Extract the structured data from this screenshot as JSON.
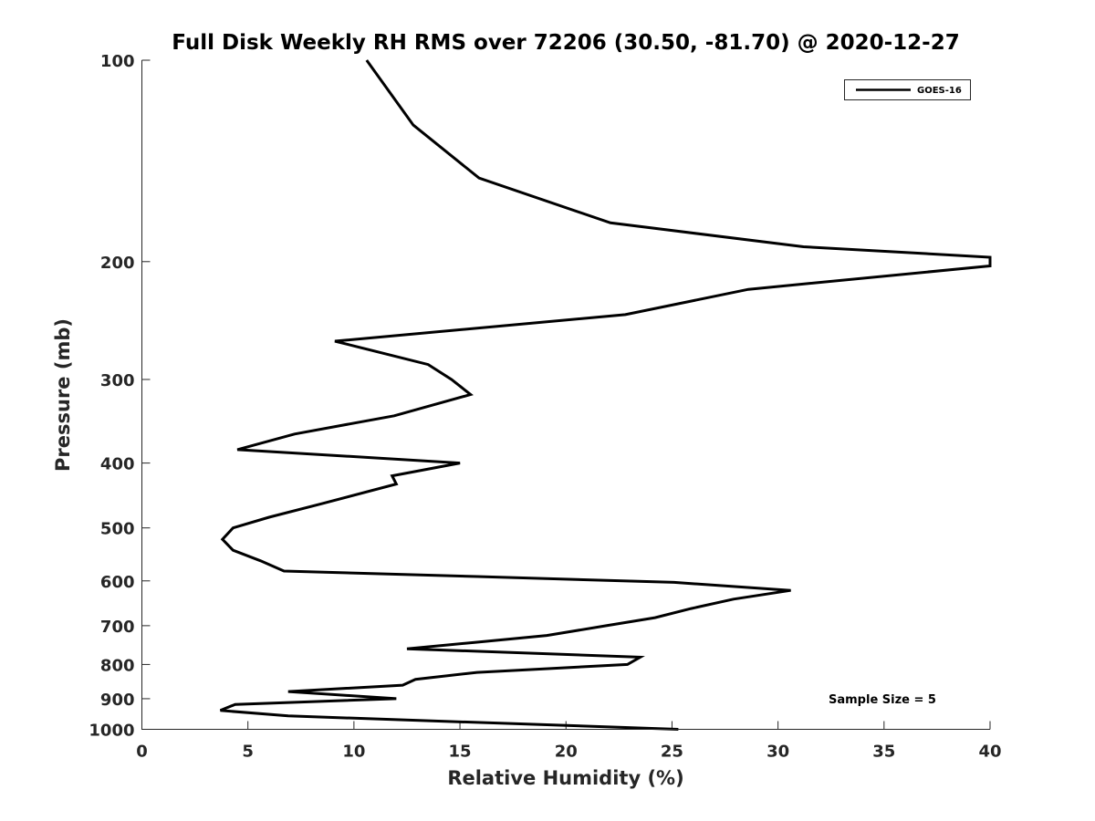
{
  "chart_data": {
    "type": "line",
    "title": "Full Disk Weekly RH RMS over 72206 (30.50, -81.70) @ 2020-12-27",
    "xlabel": "Relative Humidity (%)",
    "ylabel": "Pressure (mb)",
    "xlim": [
      0,
      40
    ],
    "ylim": [
      100,
      1000
    ],
    "y_scale": "log",
    "y_reversed": true,
    "x_ticks": [
      "0",
      "5",
      "10",
      "15",
      "20",
      "25",
      "30",
      "35",
      "40"
    ],
    "y_ticks": [
      "100",
      "200",
      "300",
      "400",
      "500",
      "600",
      "700",
      "800",
      "900",
      "1000"
    ],
    "grid": false,
    "legend_position": "top-right",
    "annotation": "Sample Size = 5",
    "series": [
      {
        "name": "GOES-16",
        "color": "#000000",
        "points": [
          [
            10.6,
            100
          ],
          [
            12.8,
            125
          ],
          [
            15.9,
            150
          ],
          [
            22.1,
            175
          ],
          [
            31.2,
            190
          ],
          [
            40,
            197
          ],
          [
            40,
            203
          ],
          [
            28.6,
            220
          ],
          [
            22.8,
            240
          ],
          [
            9.1,
            263
          ],
          [
            13.5,
            285
          ],
          [
            14.6,
            300
          ],
          [
            15.5,
            316
          ],
          [
            11.9,
            340
          ],
          [
            7.2,
            362
          ],
          [
            4.5,
            382
          ],
          [
            15.0,
            400
          ],
          [
            11.8,
            418
          ],
          [
            12.0,
            430
          ],
          [
            8.5,
            460
          ],
          [
            6.0,
            482
          ],
          [
            4.3,
            500
          ],
          [
            3.8,
            520
          ],
          [
            4.3,
            540
          ],
          [
            5.6,
            560
          ],
          [
            6.7,
            580
          ],
          [
            15.8,
            591
          ],
          [
            25.1,
            603
          ],
          [
            30.6,
            620
          ],
          [
            27.9,
            639
          ],
          [
            25.9,
            660
          ],
          [
            24.2,
            681
          ],
          [
            21.9,
            700
          ],
          [
            19.1,
            724
          ],
          [
            15.8,
            741
          ],
          [
            12.5,
            758
          ],
          [
            23.5,
            780
          ],
          [
            22.9,
            800
          ],
          [
            15.8,
            822
          ],
          [
            12.9,
            842
          ],
          [
            12.3,
            859
          ],
          [
            6.9,
            878
          ],
          [
            12.0,
            900
          ],
          [
            4.4,
            918
          ],
          [
            3.7,
            937
          ],
          [
            6.9,
            955
          ],
          [
            25.3,
            1000
          ]
        ]
      }
    ]
  }
}
